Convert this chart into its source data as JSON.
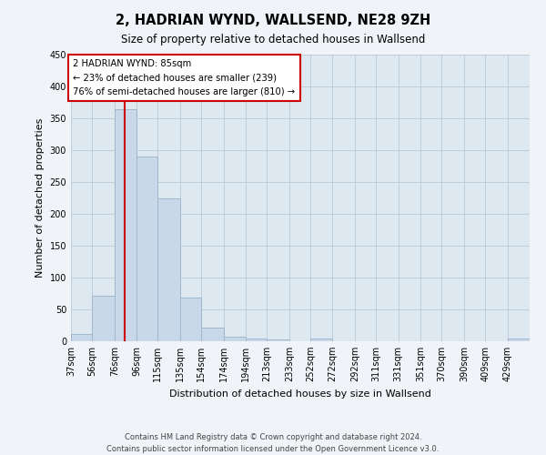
{
  "title": "2, HADRIAN WYND, WALLSEND, NE28 9ZH",
  "subtitle": "Size of property relative to detached houses in Wallsend",
  "xlabel": "Distribution of detached houses by size in Wallsend",
  "ylabel": "Number of detached properties",
  "bin_labels": [
    "37sqm",
    "56sqm",
    "76sqm",
    "96sqm",
    "115sqm",
    "135sqm",
    "154sqm",
    "174sqm",
    "194sqm",
    "213sqm",
    "233sqm",
    "252sqm",
    "272sqm",
    "292sqm",
    "311sqm",
    "331sqm",
    "351sqm",
    "370sqm",
    "390sqm",
    "409sqm",
    "429sqm"
  ],
  "bar_heights": [
    12,
    72,
    365,
    290,
    225,
    68,
    21,
    7,
    5,
    3,
    0,
    4,
    0,
    0,
    0,
    0,
    0,
    0,
    0,
    0,
    4
  ],
  "bar_color": "#c8d8e8",
  "bar_edge_color": "#a0b8cc",
  "vline_x": 85,
  "vline_color": "#cc0000",
  "bin_edges_numeric": [
    37,
    56,
    76,
    96,
    115,
    135,
    154,
    174,
    194,
    213,
    233,
    252,
    272,
    292,
    311,
    331,
    351,
    370,
    390,
    409,
    429,
    449
  ],
  "annotation_box_text": "2 HADRIAN WYND: 85sqm\n← 23% of detached houses are smaller (239)\n76% of semi-detached houses are larger (810) →",
  "annotation_box_edge_color": "#cc0000",
  "ylim": [
    0,
    450
  ],
  "yticks": [
    0,
    50,
    100,
    150,
    200,
    250,
    300,
    350,
    400,
    450
  ],
  "grid_color": "#c0ccd8",
  "bg_color": "#dde8f0",
  "fig_bg_color": "#f0f4f8",
  "footer_line1": "Contains HM Land Registry data © Crown copyright and database right 2024.",
  "footer_line2": "Contains public sector information licensed under the Open Government Licence v3.0."
}
